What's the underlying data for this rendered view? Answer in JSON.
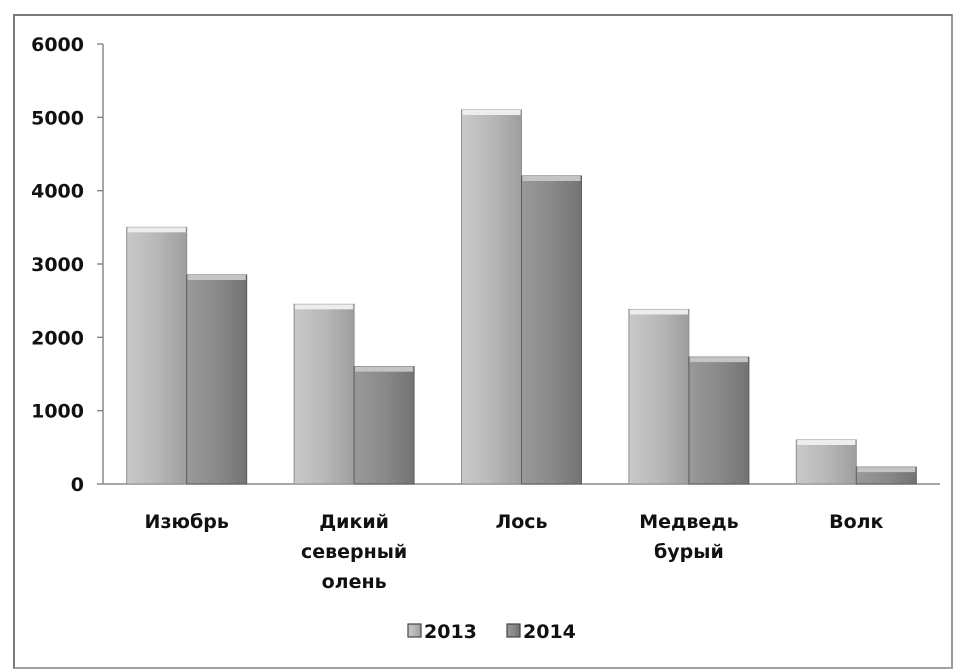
{
  "chart_data": {
    "type": "bar",
    "title": "",
    "xlabel": "",
    "ylabel": "",
    "ylim": [
      0,
      6000
    ],
    "yticks": [
      "0",
      "1000",
      "2000",
      "3000",
      "4000",
      "5000",
      "6000"
    ],
    "categories": [
      [
        "Изюбрь"
      ],
      [
        "Дикий",
        "северный",
        "олень"
      ],
      [
        "Лось"
      ],
      [
        "Медведь",
        "бурый"
      ],
      [
        "Волк"
      ]
    ],
    "series": [
      {
        "name": "2013",
        "color": "#b3b3b3",
        "values": [
          3500,
          2450,
          5100,
          2380,
          600
        ]
      },
      {
        "name": "2014",
        "color": "#8c8c8c",
        "values": [
          2850,
          1600,
          4200,
          1730,
          230
        ]
      }
    ],
    "legend_position": "bottom",
    "grid": false
  }
}
